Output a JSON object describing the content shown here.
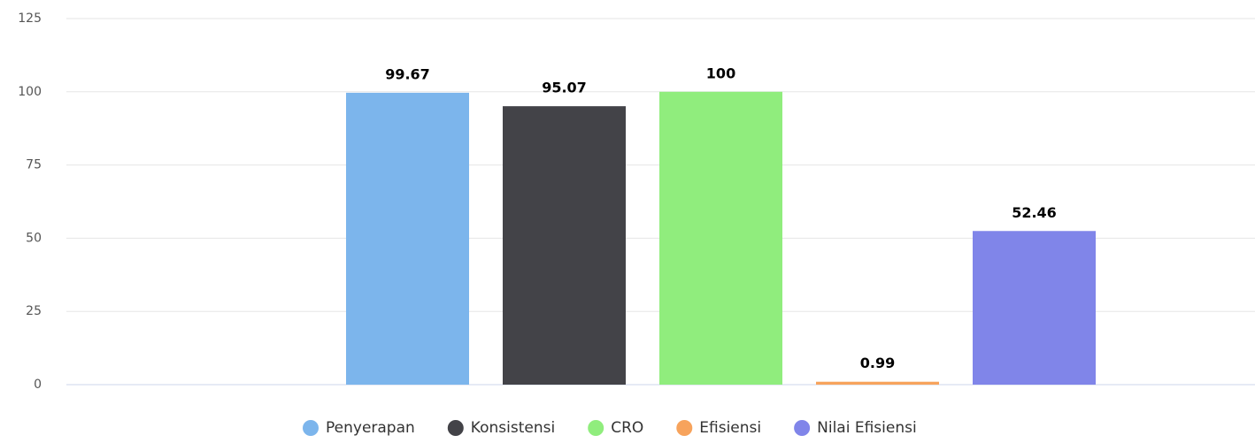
{
  "chart_data": {
    "type": "bar",
    "categories": [
      null
    ],
    "series": [
      {
        "name": "Penyerapan",
        "color": "#7cb5ec",
        "values": [
          99.67
        ]
      },
      {
        "name": "Konsistensi",
        "color": "#434348",
        "values": [
          95.07
        ]
      },
      {
        "name": "CRO",
        "color": "#90ed7d",
        "values": [
          100
        ]
      },
      {
        "name": "Efisiensi",
        "color": "#f7a35c",
        "values": [
          0.99
        ]
      },
      {
        "name": "Nilai Efisiensi",
        "color": "#8085e9",
        "values": [
          52.46
        ]
      }
    ],
    "ylim": [
      0,
      125
    ],
    "yticks": [
      0,
      25,
      50,
      75,
      100,
      125
    ],
    "grid": true,
    "legend": "bottom"
  }
}
